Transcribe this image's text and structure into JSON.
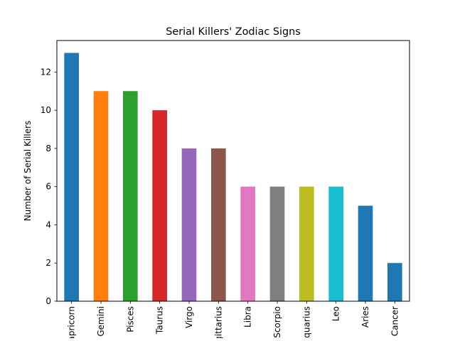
{
  "chart_data": {
    "type": "bar",
    "title": "Serial Killers' Zodiac Signs",
    "xlabel": "",
    "ylabel": "Number of Serial Killers",
    "categories": [
      "Capricorn",
      "Gemini",
      "Pisces",
      "Taurus",
      "Virgo",
      "Sagittarius",
      "Libra",
      "Scorpio",
      "Aquarius",
      "Leo",
      "Aries",
      "Cancer"
    ],
    "values": [
      13,
      11,
      11,
      10,
      8,
      8,
      6,
      6,
      6,
      6,
      5,
      2
    ],
    "colors": [
      "#1f77b4",
      "#ff7f0e",
      "#2ca02c",
      "#d62728",
      "#9467bd",
      "#8c564b",
      "#e377c2",
      "#7f7f7f",
      "#bcbd22",
      "#17becf",
      "#1f77b4",
      "#1f77b4"
    ],
    "ylim": [
      0,
      13.65
    ],
    "yticks": [
      0,
      2,
      4,
      6,
      8,
      10,
      12
    ],
    "grid": false,
    "legend": "none"
  }
}
